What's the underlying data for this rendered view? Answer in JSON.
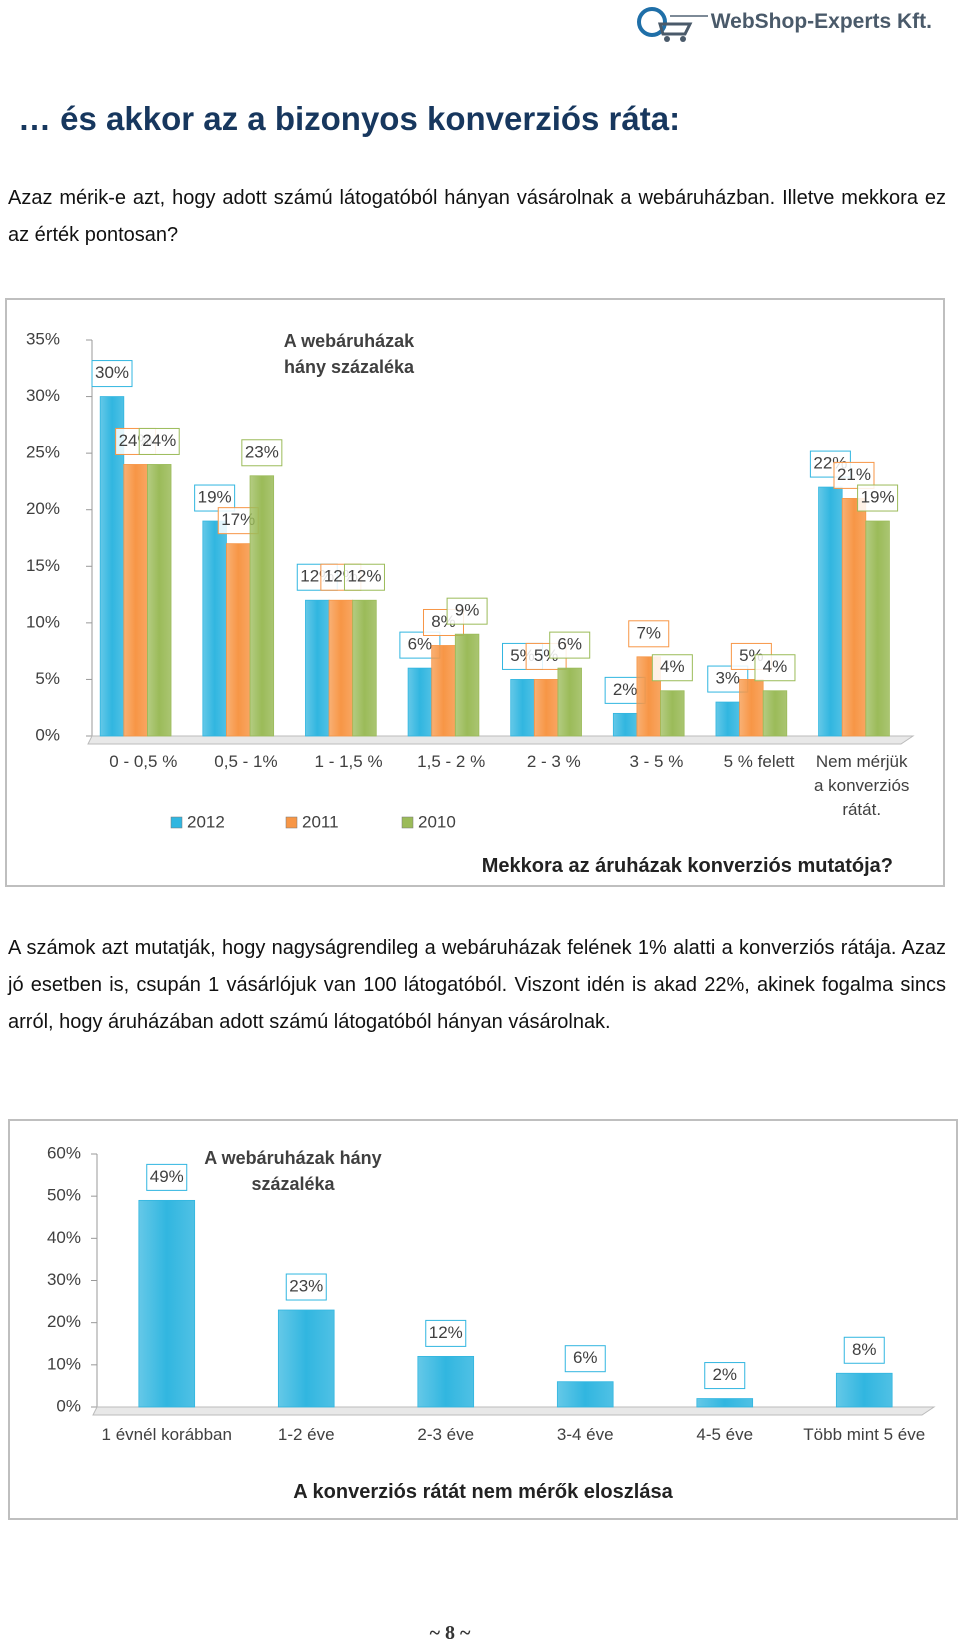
{
  "header": {
    "logo_text": "WebShop-Experts Kft."
  },
  "heading": "… és akkor az a bizonyos konverziós ráta:",
  "paragraphs": [
    "Azaz mérik-e azt, hogy adott számú látogatóból hányan vásárolnak a webáruházban. Illetve mekkora ez az érték pontosan?",
    "A számok azt mutatják, hogy nagyságrendileg a webáruházak felének 1% alatti a konverziós rátája. Azaz jó esetben is, csupán 1 vásárlójuk van 100 látogatóból. Viszont idén is akad 22%, akinek fogalma sincs arról, hogy áruházában adott számú látogatóból hányan vásárolnak."
  ],
  "chart_data": [
    {
      "type": "bar",
      "annotation": "A webáruházak hány százaléka",
      "x_title": "Mekkora az áruházak konverziós mutatója?",
      "categories": [
        "0 - 0,5 %",
        "0,5 - 1%",
        "1 - 1,5 %",
        "1,5 - 2 %",
        "2 - 3 %",
        "3 - 5 %",
        "5 % felett",
        "Nem mérjük a konverziós rátát."
      ],
      "series": [
        {
          "name": "2012",
          "color": "#31b6e0",
          "values": [
            30,
            19,
            12,
            6,
            5,
            2,
            3,
            22
          ],
          "value_labels": [
            "30%",
            "19%",
            "12%",
            "6%",
            "5%",
            "2%",
            "3%",
            "22%"
          ]
        },
        {
          "name": "2011",
          "color": "#f79646",
          "values": [
            24,
            17,
            12,
            8,
            5,
            7,
            5,
            21
          ],
          "value_labels": [
            "24%",
            "17%",
            "12%",
            "8%",
            "5%",
            "7%",
            "5%",
            "21%"
          ]
        },
        {
          "name": "2010",
          "color": "#9bbb59",
          "values": [
            24,
            23,
            12,
            9,
            6,
            4,
            4,
            19
          ],
          "value_labels": [
            "24%",
            "23%",
            "12%",
            "9%",
            "6%",
            "4%",
            "4%",
            "19%"
          ]
        }
      ],
      "ylim": [
        0,
        35
      ],
      "yticks": [
        {
          "value": 0,
          "label": "0%"
        },
        {
          "value": 5,
          "label": "5%"
        },
        {
          "value": 10,
          "label": "10%"
        },
        {
          "value": 15,
          "label": "15%"
        },
        {
          "value": 20,
          "label": "20%"
        },
        {
          "value": 25,
          "label": "25%"
        },
        {
          "value": 30,
          "label": "30%"
        },
        {
          "value": 35,
          "label": "35%"
        }
      ],
      "legend": "bottom"
    },
    {
      "type": "bar",
      "annotation": "A webáruházak hány százaléka",
      "x_title": "A konverziós rátát nem mérők eloszlása",
      "categories": [
        "1 évnél korábban",
        "1-2 éve",
        "2-3 éve",
        "3-4 éve",
        "4-5 éve",
        "Több mint 5 éve"
      ],
      "values": [
        49,
        23,
        12,
        6,
        2,
        8
      ],
      "value_labels": [
        "49%",
        "23%",
        "12%",
        "6%",
        "2%",
        "8%"
      ],
      "color": "#31b6e0",
      "ylim": [
        0,
        60
      ],
      "yticks": [
        {
          "value": 0,
          "label": "0%"
        },
        {
          "value": 10,
          "label": "10%"
        },
        {
          "value": 20,
          "label": "20%"
        },
        {
          "value": 30,
          "label": "30%"
        },
        {
          "value": 40,
          "label": "40%"
        },
        {
          "value": 50,
          "label": "50%"
        },
        {
          "value": 60,
          "label": "60%"
        }
      ]
    }
  ],
  "footer": {
    "page_number": "~ 8 ~"
  }
}
